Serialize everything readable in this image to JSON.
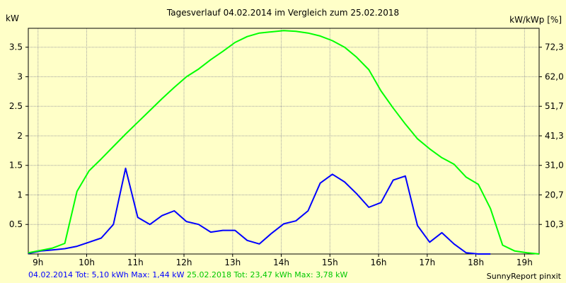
{
  "chart_data": {
    "type": "line",
    "title": "Tagesverlauf 04.02.2014 im Vergleich zum 25.02.2018",
    "ylabel_left": "kW",
    "ylabel_right": "kW/kWp [%]",
    "x_tick_labels": [
      "9h",
      "10h",
      "11h",
      "12h",
      "13h",
      "14h",
      "15h",
      "16h",
      "17h",
      "18h",
      "19h"
    ],
    "x_tick_hours": [
      9,
      10,
      11,
      12,
      13,
      14,
      15,
      16,
      17,
      18,
      19
    ],
    "xlim": [
      8.8,
      19.3
    ],
    "ylim": [
      0,
      3.82
    ],
    "y_ticks_left": [
      0.5,
      1,
      1.5,
      2,
      2.5,
      3,
      3.5
    ],
    "y_tick_labels_left": [
      "0.5",
      "1",
      "1.5",
      "2",
      "2.5",
      "3",
      "3.5"
    ],
    "y_tick_labels_right": [
      "10,3",
      "20,7",
      "31,0",
      "41,3",
      "51,7",
      "62,0",
      "72,3"
    ],
    "grid": true,
    "colors": {
      "background": "#ffffc8",
      "series_2014": "#0000ff",
      "series_2018": "#00ff00",
      "axes": "#000000",
      "grid": "#a0a0a0"
    },
    "series": [
      {
        "name": "04.02.2014",
        "color": "#0000ff",
        "x": [
          8.8,
          9.05,
          9.3,
          9.55,
          9.8,
          10.05,
          10.3,
          10.55,
          10.8,
          11.05,
          11.3,
          11.55,
          11.8,
          12.05,
          12.3,
          12.55,
          12.8,
          13.05,
          13.3,
          13.55,
          13.8,
          14.05,
          14.3,
          14.55,
          14.8,
          15.05,
          15.3,
          15.55,
          15.8,
          16.05,
          16.3,
          16.55,
          16.8,
          17.05,
          17.3,
          17.55,
          17.8,
          18.05,
          18.3
        ],
        "y": [
          0.01,
          0.05,
          0.07,
          0.09,
          0.13,
          0.2,
          0.27,
          0.5,
          1.45,
          0.62,
          0.5,
          0.65,
          0.73,
          0.55,
          0.5,
          0.37,
          0.4,
          0.4,
          0.23,
          0.17,
          0.35,
          0.51,
          0.56,
          0.73,
          1.2,
          1.35,
          1.22,
          1.02,
          0.79,
          0.87,
          1.25,
          1.32,
          0.48,
          0.2,
          0.36,
          0.17,
          0.02,
          0.0,
          0.0
        ]
      },
      {
        "name": "25.02.2018",
        "color": "#00ff00",
        "x": [
          8.8,
          9.3,
          9.55,
          9.8,
          10.05,
          10.3,
          10.55,
          10.8,
          11.05,
          11.3,
          11.55,
          11.8,
          12.05,
          12.3,
          12.55,
          12.8,
          13.05,
          13.3,
          13.55,
          13.8,
          14.05,
          14.3,
          14.55,
          14.8,
          15.05,
          15.3,
          15.55,
          15.8,
          16.05,
          16.3,
          16.55,
          16.8,
          17.05,
          17.3,
          17.55,
          17.8,
          18.05,
          18.3,
          18.55,
          18.8,
          19.05,
          19.3
        ],
        "y": [
          0.02,
          0.1,
          0.18,
          1.06,
          1.41,
          1.61,
          1.82,
          2.03,
          2.23,
          2.43,
          2.63,
          2.82,
          3.0,
          3.13,
          3.29,
          3.43,
          3.58,
          3.68,
          3.74,
          3.76,
          3.78,
          3.77,
          3.74,
          3.69,
          3.61,
          3.5,
          3.33,
          3.12,
          2.76,
          2.47,
          2.2,
          1.95,
          1.78,
          1.63,
          1.52,
          1.3,
          1.18,
          0.77,
          0.15,
          0.05,
          0.02,
          0.0
        ]
      }
    ]
  },
  "footer": {
    "series1_text": "04.02.2014 Tot: 5,10 kWh Max: 1,44 kW",
    "series2_text": "25.02.2018 Tot: 23,47 kWh Max: 3,78 kW"
  },
  "credit": "SunnyReport pinxit"
}
